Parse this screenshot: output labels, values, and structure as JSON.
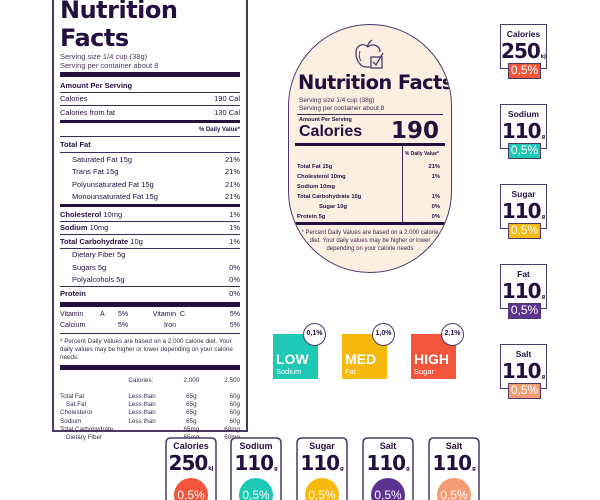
{
  "colors": {
    "ink": "#23103f",
    "outline": "#4a3a6a",
    "cream": "#fdeee2",
    "red": "#f2553a",
    "teal": "#1ec8b4",
    "yellow": "#f7b90c",
    "purple": "#5c3390",
    "peach": "#f59c74"
  },
  "main_label": {
    "title": "Nutrition Facts",
    "serving_size": "Serving size 1/4 cup (38g)",
    "servings_per_container": "Serving per container about 8",
    "amount_per_serving": "Amount Per Serving",
    "calories": {
      "label": "Calories",
      "value": "190 Cal"
    },
    "calories_from_fat": {
      "label": "Calories from fat",
      "value": "130 Cal"
    },
    "daily_value_header": "% Daily Value*",
    "total_fat": {
      "label": "Total Fat"
    },
    "fats": [
      {
        "label": "Saturated Fat 15g",
        "pct": "21%"
      },
      {
        "label": "Trans Fat 15g",
        "pct": "21%"
      },
      {
        "label": "Polyunsaturated Fat 15g",
        "pct": "21%"
      },
      {
        "label": "Monounsaturated Fat 15g",
        "pct": "21%"
      }
    ],
    "cholesterol": {
      "label": "Cholesterol",
      "amount": "10mg",
      "pct": "1%"
    },
    "sodium": {
      "label": "Sodium",
      "amount": "10mg",
      "pct": "1%"
    },
    "total_carb": {
      "label": "Total Carbohydrate",
      "amount": "10g",
      "pct": "1%"
    },
    "carbs": [
      {
        "label": "Dietary Fiber 5g",
        "pct": ""
      },
      {
        "label": "Sugars 5g",
        "pct": "0%"
      },
      {
        "label": "Polyalcohols 5g",
        "pct": "0%"
      }
    ],
    "protein": {
      "label": "Protein",
      "pct": "0%"
    },
    "vitamins": [
      {
        "a_label": "Vitamin",
        "a_name": "A",
        "a_pct": "5%",
        "b_label": "Vitamin",
        "b_name": "C",
        "b_pct": "5%"
      },
      {
        "a_label": "Calcium",
        "a_name": "",
        "a_pct": "5%",
        "b_label": "Iron",
        "b_name": "",
        "b_pct": "5%"
      }
    ],
    "footnote": "* Percent Daily Values are based on a 2.000 calorie diet. Your daily values may be higher or lower depending on your calorie needs:",
    "dv_table": {
      "header": {
        "label": "Calories:",
        "col1": "2.000",
        "col2": "2.500"
      },
      "rows": [
        {
          "name": "Total Fat",
          "qual": "Less than",
          "c1": "65g",
          "c2": "60g",
          "indent": false
        },
        {
          "name": "Sat Fat",
          "qual": "Less than",
          "c1": "65g",
          "c2": "60g",
          "indent": true
        },
        {
          "name": "Cholesterol",
          "qual": "Less than",
          "c1": "65g",
          "c2": "60g",
          "indent": false
        },
        {
          "name": "Sodium",
          "qual": "Less than",
          "c1": "65g",
          "c2": "60g",
          "indent": false
        },
        {
          "name": "Total Carbohydrate",
          "qual": "",
          "c1": "65mg",
          "c2": "60mg",
          "indent": false
        },
        {
          "name": "Dietary Fiber",
          "qual": "",
          "c1": "65mg",
          "c2": "60mg",
          "indent": true
        }
      ]
    }
  },
  "arch_label": {
    "icon": "apple-checkbox-icon",
    "title": "Nutrition Facts",
    "serving_size": "Serving size 1/4 cup (38g)",
    "servings_per_container": "Serving per container about 8",
    "amount_per_serving": "Amount Per Serving",
    "calories_label": "Calories",
    "calories_value": "190",
    "daily_value_header": "% Daily Value*",
    "rows": [
      {
        "label": "Total Fat 15g",
        "pct": "21%",
        "indent": false
      },
      {
        "label": "Cholesterol 10mg",
        "pct": "1%",
        "indent": false
      },
      {
        "label": "Sodium 10mg",
        "pct": "",
        "indent": false
      },
      {
        "label": "Total Carbohydrate 10g",
        "pct": "1%",
        "indent": false
      },
      {
        "label": "Sugar 10g",
        "pct": "0%",
        "indent": true
      },
      {
        "label": "Protein 5g",
        "pct": "0%",
        "indent": false
      }
    ],
    "footnote": "* Percent Daily Values are based on a 2.000 calorie diet. Your daily values may be higher or lower depending on your calorie needs"
  },
  "right_badges": [
    {
      "name": "Calories",
      "value": "250",
      "unit": "kJ",
      "pct": "0,5%",
      "color": "#f2553a"
    },
    {
      "name": "Sodium",
      "value": "110",
      "unit": "g",
      "pct": "0,5%",
      "color": "#1ec8b4"
    },
    {
      "name": "Sugar",
      "value": "110",
      "unit": "g",
      "pct": "0,5%",
      "color": "#f7b90c"
    },
    {
      "name": "Fat",
      "value": "110",
      "unit": "g",
      "pct": "0,5%",
      "color": "#5c3390"
    },
    {
      "name": "Salt",
      "value": "110",
      "unit": "g",
      "pct": "0,5%",
      "color": "#f59c74"
    }
  ],
  "level_tiles": [
    {
      "level": "LOW",
      "nutrient": "Sodium",
      "pct": "0,1%",
      "color": "#1ec8b4"
    },
    {
      "level": "MED",
      "nutrient": "Fat",
      "pct": "1,0%",
      "color": "#f7b90c"
    },
    {
      "level": "HIGH",
      "nutrient": "Sugar",
      "pct": "2,1%",
      "color": "#f2553a"
    }
  ],
  "shields": [
    {
      "name": "Calories",
      "value": "250",
      "unit": "kJ",
      "pct": "0,5%",
      "color": "#f2553a"
    },
    {
      "name": "Sodium",
      "value": "110",
      "unit": "g",
      "pct": "0,5%",
      "color": "#1ec8b4"
    },
    {
      "name": "Sugar",
      "value": "110",
      "unit": "g",
      "pct": "0,5%",
      "color": "#f7b90c"
    },
    {
      "name": "Salt",
      "value": "110",
      "unit": "g",
      "pct": "0,5%",
      "color": "#5c3390"
    },
    {
      "name": "Salt",
      "value": "110",
      "unit": "g",
      "pct": "0,5%",
      "color": "#f59c74"
    }
  ]
}
